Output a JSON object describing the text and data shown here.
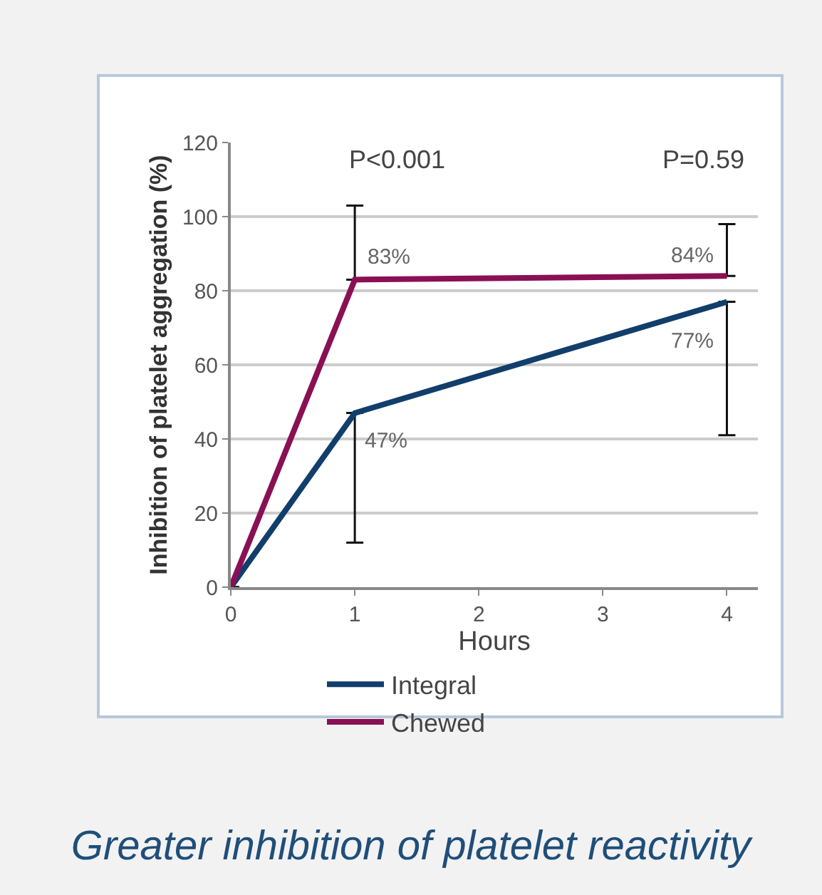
{
  "chart_data": {
    "type": "line",
    "title": "Greater inhibition of platelet reactivity",
    "xlabel": "Hours",
    "ylabel": "Inhibition of platelet aggregation (%)",
    "x": [
      0,
      1,
      4
    ],
    "series": [
      {
        "name": "Integral",
        "color": "#123e6b",
        "values": [
          0,
          47,
          77
        ],
        "value_labels": [
          null,
          "47%",
          "77%"
        ],
        "errors": [
          null,
          [
            12,
            47
          ],
          [
            41,
            77
          ]
        ]
      },
      {
        "name": "Chewed",
        "color": "#8a1055",
        "values": [
          0,
          83,
          84
        ],
        "value_labels": [
          null,
          "83%",
          "84%"
        ],
        "errors": [
          null,
          [
            83,
            103
          ],
          [
            84,
            98
          ]
        ]
      }
    ],
    "annotations": [
      "P<0.001",
      "P=0.59"
    ],
    "xlim": [
      0,
      4.25
    ],
    "xticks": [
      0,
      1,
      2,
      3,
      4
    ],
    "ylim": [
      0,
      120
    ],
    "yticks": [
      0,
      20,
      40,
      60,
      80,
      100,
      120
    ],
    "grid": "y",
    "legend": "bottom",
    "marker": "none",
    "line_style": "solid"
  }
}
